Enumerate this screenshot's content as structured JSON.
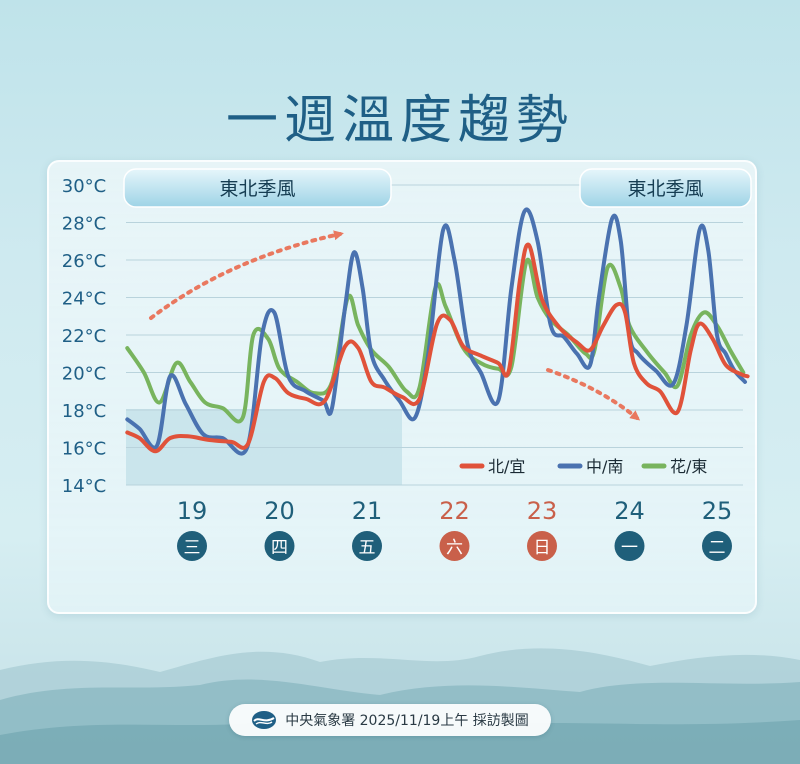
{
  "title": "一週溫度趨勢",
  "footer": {
    "text": "中央氣象署 2025/11/19上午 採訪製圖",
    "logo": "cwa-logo-icon"
  },
  "colors": {
    "north": "#e0523a",
    "central": "#4a72b0",
    "east": "#78b45e",
    "weekend": "#c9604a",
    "weekday": "#1f5f7a",
    "arrow": "#e9785f"
  },
  "chart_data": {
    "type": "line",
    "ylim": [
      14,
      30
    ],
    "yticks": [
      "30°C",
      "28°C",
      "26°C",
      "24°C",
      "22°C",
      "20°C",
      "18°C",
      "16°C",
      "14°C"
    ],
    "days": [
      {
        "date": "19",
        "weekday": "三",
        "weekend": false
      },
      {
        "date": "20",
        "weekday": "四",
        "weekend": false
      },
      {
        "date": "21",
        "weekday": "五",
        "weekend": false
      },
      {
        "date": "22",
        "weekday": "六",
        "weekend": true
      },
      {
        "date": "23",
        "weekday": "日",
        "weekend": true
      },
      {
        "date": "24",
        "weekday": "一",
        "weekend": false
      },
      {
        "date": "25",
        "weekday": "二",
        "weekend": false
      }
    ],
    "banners": [
      "東北季風",
      "東北季風"
    ],
    "series": [
      {
        "name": "北/宜",
        "color": "#e0523a",
        "x": [
          -0.74,
          -0.6,
          -0.42,
          -0.25,
          -0.05,
          0.2,
          0.45,
          0.64,
          0.82,
          0.95,
          1.1,
          1.3,
          1.52,
          1.75,
          1.9,
          2.05,
          2.2,
          2.4,
          2.6,
          2.8,
          2.95,
          3.1,
          3.3,
          3.5,
          3.62,
          3.75,
          3.85,
          4.0,
          4.2,
          4.4,
          4.55,
          4.7,
          4.85,
          4.95,
          5.05,
          5.2,
          5.35,
          5.55,
          5.7,
          5.8,
          5.95,
          6.1,
          6.28,
          6.35
        ],
        "y": [
          16.8,
          16.5,
          15.8,
          16.5,
          16.6,
          16.4,
          16.3,
          16.2,
          19.5,
          19.7,
          18.9,
          18.6,
          18.5,
          21.4,
          21.3,
          19.5,
          19.2,
          18.7,
          18.6,
          22.6,
          22.8,
          21.4,
          20.9,
          20.5,
          20.1,
          25.0,
          26.8,
          23.9,
          22.4,
          21.6,
          21.2,
          22.5,
          23.6,
          23.2,
          20.5,
          19.4,
          19.0,
          17.9,
          21.2,
          22.6,
          21.8,
          20.4,
          19.9,
          19.8
        ]
      },
      {
        "name": "中/南",
        "color": "#4a72b0",
        "x": [
          -0.74,
          -0.6,
          -0.4,
          -0.25,
          -0.07,
          0.13,
          0.35,
          0.63,
          0.8,
          0.94,
          1.1,
          1.3,
          1.5,
          1.6,
          1.75,
          1.85,
          1.95,
          2.05,
          2.2,
          2.37,
          2.55,
          2.7,
          2.87,
          3.0,
          3.15,
          3.3,
          3.5,
          3.65,
          3.8,
          3.95,
          4.1,
          4.25,
          4.4,
          4.55,
          4.65,
          4.8,
          4.9,
          5.0,
          5.1,
          5.3,
          5.5,
          5.65,
          5.8,
          5.9,
          6.0,
          6.1,
          6.2,
          6.32
        ],
        "y": [
          17.5,
          17.0,
          16.1,
          19.8,
          18.3,
          16.7,
          16.5,
          16.0,
          22.0,
          23.2,
          19.8,
          19.0,
          18.5,
          18.1,
          23.5,
          26.4,
          24.5,
          21.0,
          19.6,
          18.5,
          17.6,
          21.0,
          27.6,
          26.0,
          21.5,
          20.0,
          18.5,
          24.5,
          28.6,
          27.0,
          22.5,
          21.9,
          21.0,
          20.4,
          24.0,
          28.2,
          27.0,
          22.0,
          21.0,
          20.1,
          19.4,
          22.5,
          27.6,
          26.5,
          22.0,
          21.0,
          20.1,
          19.5
        ]
      },
      {
        "name": "花/東",
        "color": "#78b45e",
        "x": [
          -0.74,
          -0.55,
          -0.37,
          -0.18,
          -0.02,
          0.15,
          0.35,
          0.58,
          0.7,
          0.87,
          1.0,
          1.2,
          1.4,
          1.6,
          1.78,
          1.9,
          2.05,
          2.25,
          2.45,
          2.6,
          2.78,
          2.9,
          3.1,
          3.3,
          3.5,
          3.65,
          3.82,
          3.95,
          4.1,
          4.3,
          4.5,
          4.6,
          4.75,
          4.9,
          5.0,
          5.2,
          5.4,
          5.55,
          5.7,
          5.85,
          6.0,
          6.15,
          6.3
        ],
        "y": [
          21.3,
          20.0,
          18.4,
          20.5,
          19.5,
          18.4,
          18.1,
          17.6,
          22.0,
          21.8,
          20.2,
          19.5,
          18.9,
          19.5,
          24.0,
          22.5,
          21.2,
          20.3,
          19.0,
          19.2,
          24.5,
          23.5,
          21.3,
          20.5,
          20.2,
          20.3,
          25.9,
          24.0,
          22.8,
          22.0,
          21.0,
          21.2,
          25.6,
          24.5,
          22.5,
          21.1,
          20.0,
          19.3,
          22.0,
          23.2,
          22.5,
          21.2,
          20.0
        ]
      }
    ],
    "annotations": {
      "arrow_up": "rising",
      "arrow_down": "falling"
    }
  }
}
